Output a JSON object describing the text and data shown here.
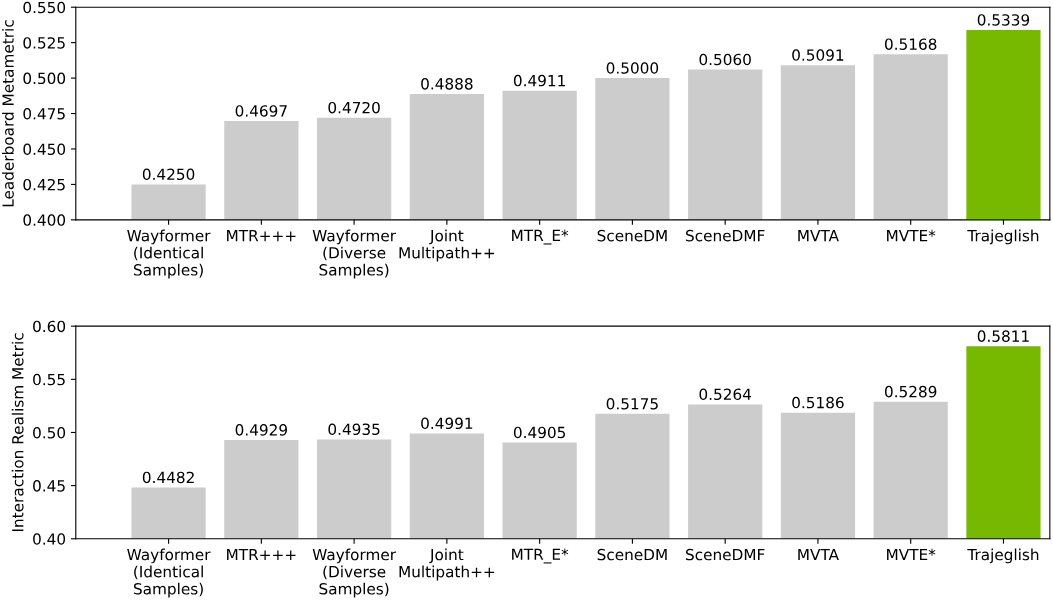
{
  "chart_data": [
    {
      "type": "bar",
      "ylabel": "Leaderboard Metametric",
      "categories": [
        "Wayformer\n(Identical\nSamples)",
        "MTR+++",
        "Wayformer\n(Diverse\nSamples)",
        "Joint\nMultipath++",
        "MTR_E*",
        "SceneDM",
        "SceneDMF",
        "MVTA",
        "MVTE*",
        "Trajeglish"
      ],
      "values": [
        0.425,
        0.4697,
        0.472,
        0.4888,
        0.4911,
        0.5,
        0.506,
        0.5091,
        0.5168,
        0.5339
      ],
      "colors": [
        "#cccccc",
        "#cccccc",
        "#cccccc",
        "#cccccc",
        "#cccccc",
        "#cccccc",
        "#cccccc",
        "#cccccc",
        "#cccccc",
        "#76b900"
      ],
      "value_labels": [
        "0.4250",
        "0.4697",
        "0.4720",
        "0.4888",
        "0.4911",
        "0.5000",
        "0.5060",
        "0.5091",
        "0.5168",
        "0.5339"
      ],
      "ylim": [
        0.4,
        0.55
      ],
      "yticks": [
        {
          "value": 0.4,
          "label": "0.400"
        },
        {
          "value": 0.425,
          "label": "0.425"
        },
        {
          "value": 0.45,
          "label": "0.450"
        },
        {
          "value": 0.475,
          "label": "0.475"
        },
        {
          "value": 0.5,
          "label": "0.500"
        },
        {
          "value": 0.525,
          "label": "0.525"
        },
        {
          "value": 0.55,
          "label": "0.550"
        }
      ]
    },
    {
      "type": "bar",
      "ylabel": "Interaction Realism Metric",
      "categories": [
        "Wayformer\n(Identical\nSamples)",
        "MTR+++",
        "Wayformer\n(Diverse\nSamples)",
        "Joint\nMultipath++",
        "MTR_E*",
        "SceneDM",
        "SceneDMF",
        "MVTA",
        "MVTE*",
        "Trajeglish"
      ],
      "values": [
        0.4482,
        0.4929,
        0.4935,
        0.4991,
        0.4905,
        0.5175,
        0.5264,
        0.5186,
        0.5289,
        0.5811
      ],
      "colors": [
        "#cccccc",
        "#cccccc",
        "#cccccc",
        "#cccccc",
        "#cccccc",
        "#cccccc",
        "#cccccc",
        "#cccccc",
        "#cccccc",
        "#76b900"
      ],
      "value_labels": [
        "0.4482",
        "0.4929",
        "0.4935",
        "0.4991",
        "0.4905",
        "0.5175",
        "0.5264",
        "0.5186",
        "0.5289",
        "0.5811"
      ],
      "ylim": [
        0.4,
        0.6
      ],
      "yticks": [
        {
          "value": 0.4,
          "label": "0.40"
        },
        {
          "value": 0.45,
          "label": "0.45"
        },
        {
          "value": 0.5,
          "label": "0.50"
        },
        {
          "value": 0.55,
          "label": "0.55"
        },
        {
          "value": 0.6,
          "label": "0.60"
        }
      ]
    }
  ]
}
